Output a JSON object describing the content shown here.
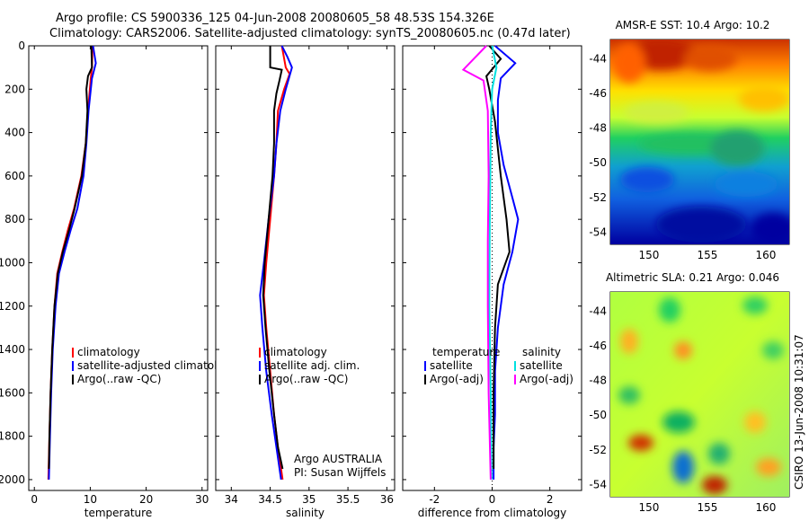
{
  "header": {
    "line1": "Argo profile: CS 5900336_125 04-Jun-2008 20080605_58 48.53S 154.326E",
    "line2": "Climatology: CARS2006. Satellite-adjusted climatology: synTS_20080605.nc (0.47d later)"
  },
  "credit": "CSIRO 13-Jun-2008 10:31:07",
  "chart_data": [
    {
      "type": "line",
      "id": "temperature",
      "xlabel": "temperature",
      "ylabel": "",
      "xlim": [
        -1,
        31
      ],
      "ylim": [
        2050,
        0
      ],
      "xticks": [
        0,
        10,
        20,
        30
      ],
      "yticks": [
        0,
        200,
        400,
        600,
        800,
        1000,
        1200,
        1400,
        1600,
        1800,
        2000
      ],
      "legend": [
        "climatology",
        "satellite-adjusted climatology",
        "Argo(..raw -QC)"
      ],
      "series": [
        {
          "name": "climatology",
          "color": "#ff0000",
          "points": [
            [
              10.4,
              0
            ],
            [
              10.3,
              100
            ],
            [
              10.1,
              150
            ],
            [
              9.6,
              300
            ],
            [
              9.2,
              450
            ],
            [
              8.4,
              600
            ],
            [
              7.1,
              750
            ],
            [
              6.0,
              850
            ],
            [
              5.0,
              950
            ],
            [
              4.1,
              1050
            ],
            [
              3.6,
              1200
            ],
            [
              3.2,
              1400
            ],
            [
              2.9,
              1600
            ],
            [
              2.7,
              1800
            ],
            [
              2.5,
              2000
            ]
          ]
        },
        {
          "name": "satellite-adjusted climatology",
          "color": "#0000ff",
          "points": [
            [
              10.5,
              0
            ],
            [
              11.0,
              80
            ],
            [
              10.3,
              150
            ],
            [
              9.7,
              300
            ],
            [
              9.3,
              450
            ],
            [
              8.8,
              600
            ],
            [
              7.7,
              750
            ],
            [
              6.5,
              850
            ],
            [
              5.4,
              950
            ],
            [
              4.4,
              1050
            ],
            [
              3.8,
              1200
            ],
            [
              3.3,
              1400
            ],
            [
              3.0,
              1600
            ],
            [
              2.8,
              1800
            ],
            [
              2.6,
              2000
            ]
          ]
        },
        {
          "name": "Argo(..raw -QC)",
          "color": "#000000",
          "points": [
            [
              10.2,
              0
            ],
            [
              10.3,
              100
            ],
            [
              9.6,
              140
            ],
            [
              9.3,
              200
            ],
            [
              9.5,
              300
            ],
            [
              9.2,
              450
            ],
            [
              8.5,
              600
            ],
            [
              7.2,
              750
            ],
            [
              6.2,
              850
            ],
            [
              5.1,
              950
            ],
            [
              4.2,
              1050
            ],
            [
              3.6,
              1200
            ],
            [
              3.2,
              1400
            ],
            [
              2.9,
              1600
            ],
            [
              2.7,
              1800
            ],
            [
              2.6,
              1950
            ]
          ]
        }
      ]
    },
    {
      "type": "line",
      "id": "salinity",
      "xlabel": "salinity",
      "xlim": [
        33.8,
        36.1
      ],
      "ylim": [
        2050,
        0
      ],
      "xticks": [
        34,
        34.5,
        35,
        35.5,
        36
      ],
      "legend": [
        "climatology",
        "satellite adj. clim.",
        "Argo(..raw -QC)"
      ],
      "annotation": [
        "Argo AUSTRALIA",
        "PI: Susan Wijffels"
      ],
      "series": [
        {
          "name": "climatology",
          "color": "#ff0000",
          "points": [
            [
              34.65,
              0
            ],
            [
              34.7,
              100
            ],
            [
              34.75,
              130
            ],
            [
              34.68,
              200
            ],
            [
              34.6,
              300
            ],
            [
              34.58,
              450
            ],
            [
              34.55,
              600
            ],
            [
              34.5,
              800
            ],
            [
              34.45,
              1000
            ],
            [
              34.42,
              1150
            ],
            [
              34.45,
              1300
            ],
            [
              34.5,
              1500
            ],
            [
              34.55,
              1700
            ],
            [
              34.6,
              1850
            ],
            [
              34.66,
              2000
            ]
          ]
        },
        {
          "name": "satellite adj. clim.",
          "color": "#0000ff",
          "points": [
            [
              34.65,
              0
            ],
            [
              34.72,
              50
            ],
            [
              34.78,
              100
            ],
            [
              34.7,
              200
            ],
            [
              34.63,
              300
            ],
            [
              34.58,
              450
            ],
            [
              34.55,
              600
            ],
            [
              34.48,
              800
            ],
            [
              34.42,
              1000
            ],
            [
              34.37,
              1150
            ],
            [
              34.4,
              1300
            ],
            [
              34.45,
              1500
            ],
            [
              34.52,
              1700
            ],
            [
              34.58,
              1850
            ],
            [
              34.64,
              2000
            ]
          ]
        },
        {
          "name": "Argo(..raw -QC)",
          "color": "#000000",
          "points": [
            [
              34.5,
              0
            ],
            [
              34.5,
              100
            ],
            [
              34.65,
              110
            ],
            [
              34.62,
              160
            ],
            [
              34.58,
              220
            ],
            [
              34.55,
              300
            ],
            [
              34.55,
              450
            ],
            [
              34.53,
              600
            ],
            [
              34.48,
              800
            ],
            [
              34.43,
              1000
            ],
            [
              34.41,
              1150
            ],
            [
              34.44,
              1300
            ],
            [
              34.49,
              1500
            ],
            [
              34.55,
              1700
            ],
            [
              34.6,
              1850
            ],
            [
              34.66,
              1950
            ]
          ]
        }
      ]
    },
    {
      "type": "line",
      "id": "difference",
      "xlabel": "difference from climatology",
      "xlim": [
        -3.1,
        3.1
      ],
      "ylim": [
        2050,
        0
      ],
      "xticks": [
        -2,
        0,
        2
      ],
      "legend_left": {
        "header": "temperature",
        "items": [
          "satellite",
          "Argo(-adj)"
        ]
      },
      "legend_right": {
        "header": "salinity",
        "items": [
          "satellite",
          "Argo(-adj)"
        ]
      },
      "series": [
        {
          "name": "temperature satellite",
          "color": "#0000ff",
          "points": [
            [
              0.1,
              0
            ],
            [
              0.8,
              80
            ],
            [
              0.3,
              150
            ],
            [
              0.2,
              250
            ],
            [
              0.2,
              400
            ],
            [
              0.4,
              550
            ],
            [
              0.7,
              700
            ],
            [
              0.9,
              800
            ],
            [
              0.7,
              950
            ],
            [
              0.4,
              1100
            ],
            [
              0.2,
              1300
            ],
            [
              0.1,
              1500
            ],
            [
              0.1,
              1700
            ],
            [
              0.05,
              1850
            ],
            [
              0.05,
              2000
            ]
          ]
        },
        {
          "name": "temperature Argo(-adj)",
          "color": "#000000",
          "points": [
            [
              -0.1,
              0
            ],
            [
              0.3,
              60
            ],
            [
              -0.2,
              140
            ],
            [
              -0.1,
              200
            ],
            [
              0.1,
              350
            ],
            [
              0.3,
              600
            ],
            [
              0.5,
              800
            ],
            [
              0.6,
              950
            ],
            [
              0.2,
              1100
            ],
            [
              0.1,
              1300
            ],
            [
              0.05,
              1600
            ],
            [
              0.05,
              1800
            ],
            [
              0.05,
              1950
            ]
          ]
        },
        {
          "name": "salinity satellite",
          "color": "#00e0e0",
          "points": [
            [
              0.0,
              0
            ],
            [
              0.15,
              100
            ],
            [
              0.0,
              200
            ],
            [
              -0.05,
              400
            ],
            [
              -0.08,
              800
            ],
            [
              -0.1,
              1200
            ],
            [
              -0.05,
              1600
            ],
            [
              -0.02,
              2000
            ]
          ]
        },
        {
          "name": "salinity Argo(-adj)",
          "color": "#ff00ff",
          "points": [
            [
              -0.2,
              0
            ],
            [
              -1.0,
              110
            ],
            [
              -0.3,
              160
            ],
            [
              -0.15,
              300
            ],
            [
              -0.12,
              600
            ],
            [
              -0.15,
              900
            ],
            [
              -0.15,
              1200
            ],
            [
              -0.12,
              1600
            ],
            [
              -0.05,
              2000
            ]
          ]
        }
      ]
    },
    {
      "type": "heatmap",
      "id": "amsre-sst",
      "title": "AMSR-E SST: 10.4  Argo: 10.2",
      "xticks": [
        150,
        155,
        160
      ],
      "yticks": [
        -44,
        -46,
        -48,
        -50,
        -52,
        -54
      ],
      "xlim": [
        146.7,
        162.0
      ],
      "ylim": [
        -54.7,
        -42.9
      ],
      "marker": [
        154.3,
        -48.53
      ]
    },
    {
      "type": "heatmap",
      "id": "altimetric-sla",
      "title": "Altimetric SLA: 0.21  Argo: 0.046",
      "xticks": [
        150,
        155,
        160
      ],
      "yticks": [
        -44,
        -46,
        -48,
        -50,
        -52,
        -54
      ],
      "xlim": [
        146.7,
        162.0
      ],
      "ylim": [
        -54.7,
        -42.9
      ],
      "marker": [
        154.3,
        -48.53
      ]
    }
  ]
}
